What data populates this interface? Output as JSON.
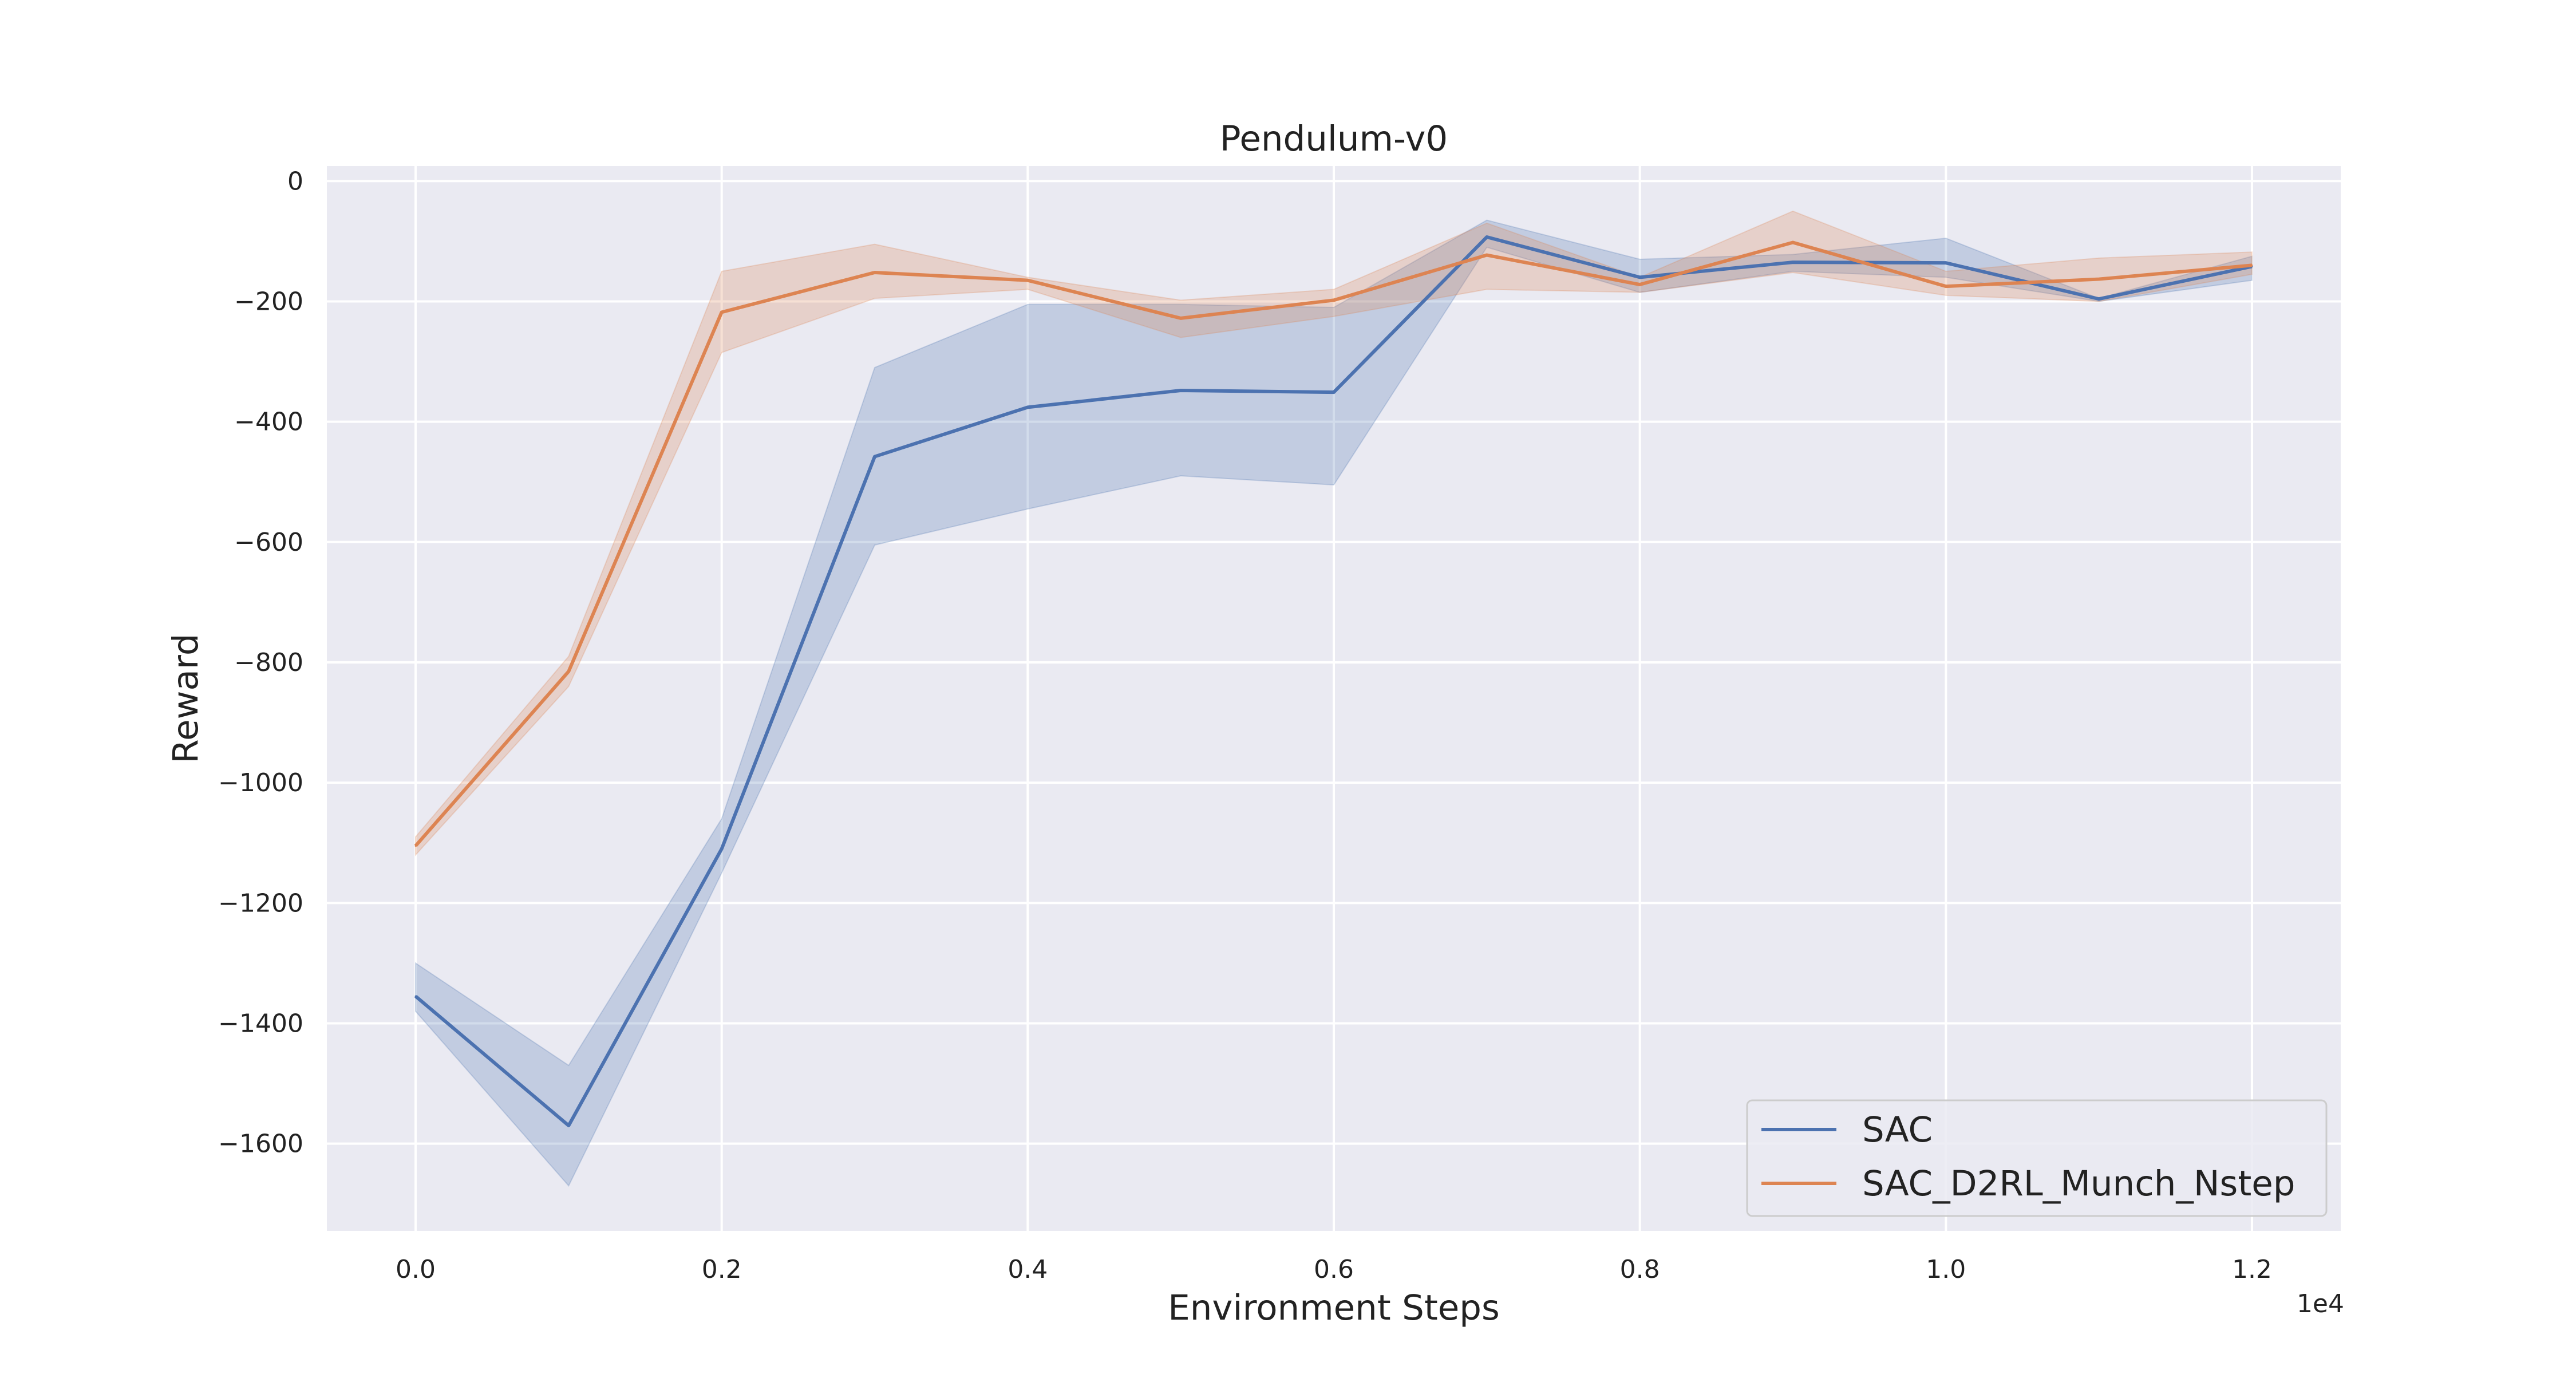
{
  "chart_data": {
    "type": "line",
    "title": "Pendulum-v0",
    "xlabel": "Environment Steps",
    "ylabel": "Reward",
    "x_offset_label": "1e4",
    "x_unit_multiplier": 10000,
    "xlim": [
      -0.058,
      1.258
    ],
    "ylim": [
      -1745,
      25
    ],
    "xticks": [
      0.0,
      0.2,
      0.4,
      0.6,
      0.8,
      1.0,
      1.2
    ],
    "xtick_labels": [
      "0.0",
      "0.2",
      "0.4",
      "0.6",
      "0.8",
      "1.0",
      "1.2"
    ],
    "yticks": [
      0,
      -200,
      -400,
      -600,
      -800,
      -1000,
      -1200,
      -1400,
      -1600
    ],
    "ytick_labels": [
      "0",
      "−200",
      "−400",
      "−600",
      "−800",
      "−1000",
      "−1200",
      "−1400",
      "−1600"
    ],
    "grid": true,
    "legend_position": "bottom-right",
    "x": [
      0,
      1000,
      2000,
      3000,
      4000,
      5000,
      6000,
      7000,
      8000,
      9000,
      10000,
      11000,
      12000
    ],
    "series": [
      {
        "name": "SAC",
        "color": "#4c72b0",
        "values": [
          -1355,
          -1570,
          -1110,
          -458,
          -376,
          -348,
          -351,
          -93,
          -160,
          -135,
          -136,
          -196,
          -142
        ],
        "band_lower": [
          -1380,
          -1670,
          -1150,
          -605,
          -545,
          -490,
          -505,
          -110,
          -185,
          -150,
          -160,
          -200,
          -165
        ],
        "band_upper": [
          -1300,
          -1470,
          -1060,
          -310,
          -205,
          -205,
          -210,
          -65,
          -130,
          -122,
          -95,
          -195,
          -125
        ]
      },
      {
        "name": "SAC_D2RL_Munch_Nstep",
        "color": "#dd8452",
        "values": [
          -1105,
          -815,
          -218,
          -152,
          -165,
          -228,
          -198,
          -123,
          -172,
          -102,
          -175,
          -163,
          -140
        ],
        "band_lower": [
          -1120,
          -840,
          -285,
          -195,
          -180,
          -260,
          -225,
          -180,
          -185,
          -152,
          -190,
          -200,
          -155
        ],
        "band_upper": [
          -1090,
          -790,
          -150,
          -105,
          -160,
          -198,
          -180,
          -70,
          -160,
          -50,
          -150,
          -128,
          -118
        ]
      }
    ]
  }
}
